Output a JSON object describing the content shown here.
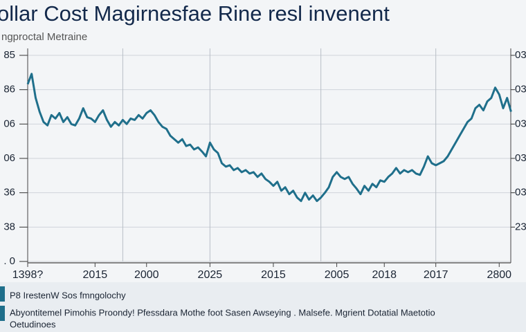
{
  "chart_data": {
    "type": "line",
    "title": "ollar Cost Magirnesfae Rine resl invenent",
    "subtitle": "ngproctal Metraine",
    "color": "#1f6f8b",
    "grid": true,
    "xlim": [
      0,
      120
    ],
    "xticks": [
      {
        "value": 0,
        "label": "1398?"
      },
      {
        "value": 17,
        "label": "2015"
      },
      {
        "value": 30,
        "label": "2000"
      },
      {
        "value": 46,
        "label": "2025"
      },
      {
        "value": 62,
        "label": "2015"
      },
      {
        "value": 78,
        "label": "2005"
      },
      {
        "value": 90,
        "label": "2018"
      },
      {
        "value": 103,
        "label": "2017"
      },
      {
        "value": 119,
        "label": "2800"
      }
    ],
    "xgrid": [
      24,
      46,
      74,
      103
    ],
    "ylim": [
      0,
      6
    ],
    "yticks": [
      {
        "value": 6,
        "label": "85"
      },
      {
        "value": 5,
        "label": "86"
      },
      {
        "value": 4,
        "label": "06"
      },
      {
        "value": 3,
        "label": "06"
      },
      {
        "value": 2,
        "label": "36"
      },
      {
        "value": 1,
        "label": "38"
      },
      {
        "value": 0,
        "label": ". 0"
      }
    ],
    "y2lim": [
      0,
      6
    ],
    "y2ticks": [
      {
        "value": 6,
        "label": "03"
      },
      {
        "value": 5,
        "label": "03"
      },
      {
        "value": 4,
        "label": "03"
      },
      {
        "value": 3,
        "label": "03"
      },
      {
        "value": 2,
        "label": "03"
      },
      {
        "value": 1,
        "label": "23"
      }
    ],
    "values": [
      5.16,
      5.46,
      4.76,
      4.36,
      4.06,
      3.96,
      4.26,
      4.16,
      4.32,
      4.06,
      4.2,
      4.0,
      3.96,
      4.16,
      4.46,
      4.2,
      4.16,
      4.06,
      4.26,
      4.4,
      4.12,
      3.92,
      4.06,
      3.96,
      4.12,
      4.0,
      4.16,
      4.12,
      4.26,
      4.16,
      4.32,
      4.4,
      4.26,
      4.06,
      3.92,
      3.86,
      3.66,
      3.56,
      3.46,
      3.56,
      3.36,
      3.4,
      3.26,
      3.32,
      3.2,
      3.06,
      3.46,
      3.26,
      3.16,
      2.86,
      2.76,
      2.8,
      2.66,
      2.72,
      2.6,
      2.66,
      2.56,
      2.6,
      2.46,
      2.56,
      2.4,
      2.32,
      2.2,
      2.32,
      2.06,
      2.16,
      1.96,
      2.06,
      1.86,
      1.76,
      2.0,
      1.8,
      1.92,
      1.76,
      1.86,
      2.0,
      2.16,
      2.46,
      2.6,
      2.46,
      2.4,
      2.46,
      2.26,
      2.12,
      1.96,
      2.2,
      2.06,
      2.26,
      2.16,
      2.36,
      2.32,
      2.46,
      2.56,
      2.72,
      2.56,
      2.66,
      2.6,
      2.66,
      2.56,
      2.52,
      2.76,
      3.06,
      2.86,
      2.8,
      2.86,
      2.92,
      3.06,
      3.26,
      3.46,
      3.66,
      3.86,
      4.06,
      4.16,
      4.46,
      4.56,
      4.4,
      4.66,
      4.76,
      5.06,
      4.86,
      4.46,
      4.76,
      4.36
    ],
    "annotations": [
      "P8 IrestenW Sos fmngolochy",
      "Abyontitemel Pimohis Proondy! Pfessdara Mothe foot Sasen Awseying . Malsefe. Mgrient Dotatial Maetotio",
      "Oetudinoes"
    ]
  }
}
